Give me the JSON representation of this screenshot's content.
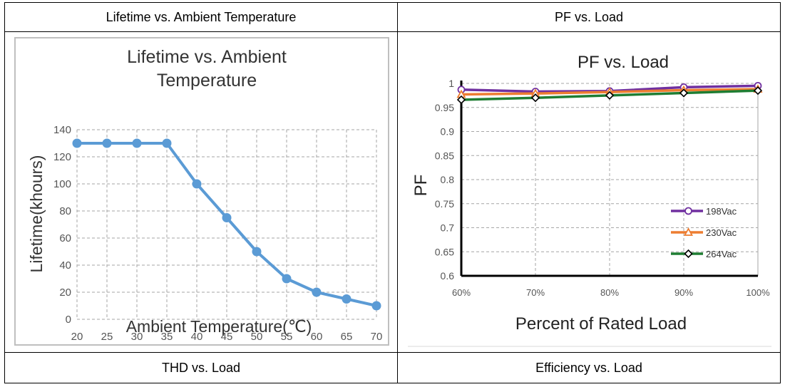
{
  "table": {
    "headers": [
      "Lifetime vs. Ambient Temperature",
      "PF vs. Load"
    ],
    "footers": [
      "THD vs. Load",
      "Efficiency vs. Load"
    ]
  },
  "colors": {
    "lifetime_line": "#5b9bd5",
    "s198": "#7030a0",
    "s230": "#ed7d31",
    "s264": "#1e7d32",
    "grid": "#a6a6a6"
  },
  "chart_data": [
    {
      "type": "line",
      "title_lines": [
        "Lifetime vs. Ambient",
        "Temperature"
      ],
      "xlabel": "Ambient Temperature(℃)",
      "ylabel": "Lifetime(khours)",
      "x": [
        20,
        25,
        30,
        35,
        40,
        45,
        50,
        55,
        60,
        65,
        70
      ],
      "xticks": [
        "20",
        "25",
        "30",
        "35",
        "40",
        "45",
        "50",
        "55",
        "60",
        "65",
        "70"
      ],
      "values": [
        130,
        130,
        130,
        130,
        100,
        75,
        50,
        30,
        20,
        15,
        10
      ],
      "ylim": [
        0,
        140
      ],
      "yticks": [
        "0",
        "20",
        "40",
        "60",
        "80",
        "100",
        "120",
        "140"
      ],
      "grid": true
    },
    {
      "type": "line",
      "title": "PF vs. Load",
      "xlabel": "Percent of Rated Load",
      "ylabel": "PF",
      "categories": [
        "60%",
        "70%",
        "80%",
        "90%",
        "100%"
      ],
      "ylim": [
        0.6,
        1
      ],
      "yticks": [
        "0.6",
        "0.65",
        "0.7",
        "0.75",
        "0.8",
        "0.85",
        "0.9",
        "0.95",
        "1"
      ],
      "grid": true,
      "legend_position": "bottom-right",
      "series": [
        {
          "name": "198Vac",
          "values": [
            0.987,
            0.983,
            0.984,
            0.992,
            0.995
          ]
        },
        {
          "name": "230Vac",
          "values": [
            0.977,
            0.979,
            0.982,
            0.986,
            0.988
          ]
        },
        {
          "name": "264Vac",
          "values": [
            0.966,
            0.97,
            0.975,
            0.98,
            0.985
          ]
        }
      ]
    }
  ]
}
